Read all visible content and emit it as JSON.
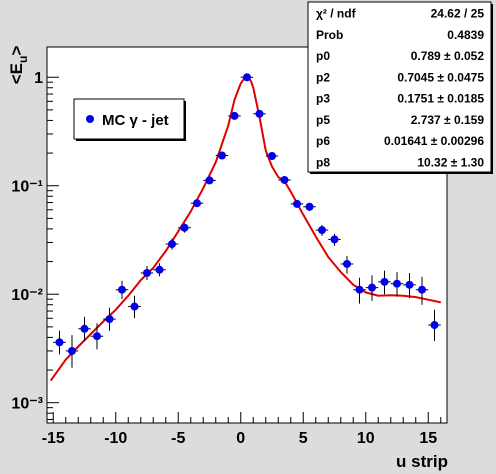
{
  "colors": {
    "page_bg": "#dcdcdc",
    "frame_bg": "#ffffff",
    "marker": "#0000ee",
    "fit_line": "#e00000",
    "axis": "#000000"
  },
  "stats_box": {
    "rows": [
      {
        "label": "χ² / ndf",
        "value": "24.62 / 25"
      },
      {
        "label": "Prob",
        "value": "0.4839"
      },
      {
        "label": "p0",
        "value": "0.789 ± 0.052"
      },
      {
        "label": "p2",
        "value": "0.7045 ± 0.0475"
      },
      {
        "label": "p3",
        "value": "0.1751 ± 0.0185"
      },
      {
        "label": "p5",
        "value": "2.737 ± 0.159"
      },
      {
        "label": "p6",
        "value": "0.01641 ± 0.00296"
      },
      {
        "label": "p8",
        "value": "10.32 ± 1.30"
      }
    ]
  },
  "chart_data": {
    "type": "scatter",
    "title": "",
    "xlabel": "u strip",
    "ylabel": "<E_u>",
    "xlim": [
      -15.5,
      16.5
    ],
    "ylim": [
      0.00065,
      1.9
    ],
    "yscale": "log",
    "grid": false,
    "legend": {
      "label": "MC γ - jet",
      "placement": "upper-left"
    },
    "x_ticks": [
      -15,
      -10,
      -5,
      0,
      5,
      10,
      15
    ],
    "x_tick_labels": [
      "-15",
      "-10",
      "-5",
      "0",
      "5",
      "10",
      "15"
    ],
    "y_ticks": [
      0.001,
      0.01,
      0.1,
      1
    ],
    "y_tick_labels": [
      "10⁻³",
      "10⁻²",
      "10⁻¹",
      "1"
    ],
    "series": [
      {
        "name": "MC γ - jet",
        "style": "markers_with_errors",
        "x": [
          -14.5,
          -13.5,
          -12.5,
          -11.5,
          -10.5,
          -9.5,
          -8.5,
          -7.5,
          -6.5,
          -5.5,
          -4.5,
          -3.5,
          -2.5,
          -1.5,
          -0.5,
          0.5,
          1.5,
          2.5,
          3.5,
          4.5,
          5.5,
          6.5,
          7.5,
          8.5,
          9.5,
          10.5,
          11.5,
          12.5,
          13.5,
          14.5,
          15.5
        ],
        "y": [
          0.0036,
          0.003,
          0.0048,
          0.0041,
          0.0059,
          0.011,
          0.0077,
          0.0157,
          0.0168,
          0.029,
          0.041,
          0.069,
          0.112,
          0.19,
          0.44,
          1.0,
          0.46,
          0.188,
          0.113,
          0.068,
          0.064,
          0.039,
          0.032,
          0.019,
          0.011,
          0.0115,
          0.013,
          0.0125,
          0.0122,
          0.011,
          0.0052
        ],
        "yerr_low": [
          0.0008,
          0.0009,
          0.0011,
          0.001,
          0.0013,
          0.002,
          0.0017,
          0.0022,
          0.0022,
          0.0033,
          0.004,
          0.005,
          0.006,
          0.006,
          0.006,
          0.006,
          0.006,
          0.006,
          0.006,
          0.005,
          0.0055,
          0.0045,
          0.004,
          0.0035,
          0.0028,
          0.0028,
          0.003,
          0.003,
          0.003,
          0.003,
          0.0015
        ],
        "yerr_high": [
          0.001,
          0.0012,
          0.0014,
          0.0013,
          0.0016,
          0.0023,
          0.002,
          0.0025,
          0.0025,
          0.0035,
          0.004,
          0.005,
          0.006,
          0.006,
          0.006,
          0.006,
          0.006,
          0.006,
          0.006,
          0.005,
          0.0055,
          0.0045,
          0.004,
          0.0035,
          0.0032,
          0.0034,
          0.0035,
          0.0035,
          0.0035,
          0.0035,
          0.002
        ]
      },
      {
        "name": "fit",
        "style": "line",
        "x": [
          -15.2,
          -14,
          -13,
          -12,
          -11,
          -10,
          -9,
          -8,
          -7,
          -6,
          -5,
          -4,
          -3,
          -2,
          -1,
          -0.5,
          0,
          0.3,
          0.5,
          0.8,
          1,
          1.5,
          2,
          2.5,
          3,
          3.5,
          4,
          5,
          6,
          7,
          8,
          9,
          10,
          11,
          12,
          13,
          14,
          15,
          16
        ],
        "y": [
          0.0016,
          0.0025,
          0.0033,
          0.0043,
          0.0056,
          0.0072,
          0.0097,
          0.0135,
          0.0175,
          0.025,
          0.038,
          0.058,
          0.095,
          0.165,
          0.36,
          0.62,
          0.88,
          0.98,
          1.0,
          0.93,
          0.8,
          0.43,
          0.21,
          0.15,
          0.12,
          0.11,
          0.088,
          0.054,
          0.034,
          0.022,
          0.016,
          0.0122,
          0.0104,
          0.0097,
          0.0098,
          0.0097,
          0.0094,
          0.0089,
          0.0084
        ]
      }
    ]
  }
}
